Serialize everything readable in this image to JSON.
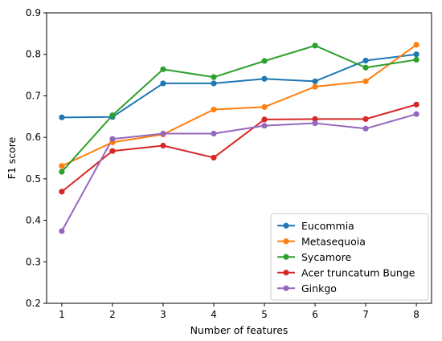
{
  "chart_data": {
    "type": "line",
    "title": "",
    "xlabel": "Number of features",
    "ylabel": "F1 score",
    "x": [
      1,
      2,
      3,
      4,
      5,
      6,
      7,
      8
    ],
    "xlim": [
      0.7,
      8.3
    ],
    "ylim": [
      0.2,
      0.9
    ],
    "xticks": [
      "1",
      "2",
      "3",
      "4",
      "5",
      "6",
      "7",
      "8"
    ],
    "yticks": [
      "0.2",
      "0.3",
      "0.4",
      "0.5",
      "0.6",
      "0.7",
      "0.8",
      "0.9"
    ],
    "grid": false,
    "legend_position": "bottom-right",
    "series": [
      {
        "name": "Eucommia",
        "color": "#1f77b4",
        "values": [
          0.648,
          0.649,
          0.73,
          0.73,
          0.741,
          0.735,
          0.785,
          0.8
        ]
      },
      {
        "name": "Metasequoia",
        "color": "#ff7f0e",
        "values": [
          0.531,
          0.588,
          0.607,
          0.667,
          0.673,
          0.722,
          0.735,
          0.823
        ]
      },
      {
        "name": "Sycamore",
        "color": "#2ca02c",
        "values": [
          0.517,
          0.653,
          0.764,
          0.745,
          0.784,
          0.821,
          0.768,
          0.787
        ]
      },
      {
        "name": "Acer truncatum Bunge",
        "color": "#d62728",
        "values": [
          0.469,
          0.567,
          0.58,
          0.551,
          0.643,
          0.644,
          0.644,
          0.679
        ]
      },
      {
        "name": "Ginkgo",
        "color": "#9467bd",
        "values": [
          0.374,
          0.596,
          0.609,
          0.609,
          0.628,
          0.634,
          0.621,
          0.656
        ]
      }
    ]
  }
}
